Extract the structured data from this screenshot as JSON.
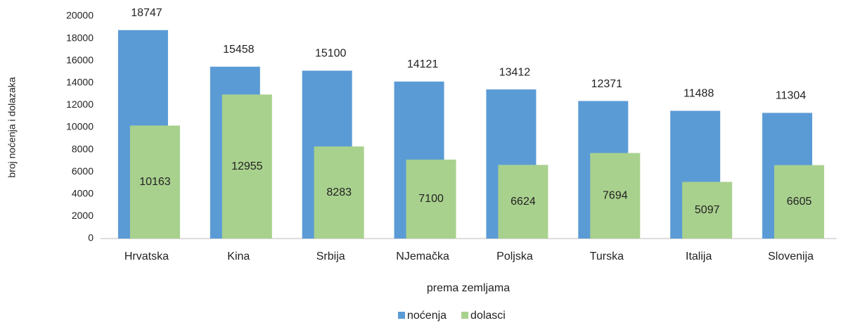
{
  "chart_data": {
    "type": "bar",
    "x_label": "prema zemljama",
    "y_label": "broj noćenja i dolazaka",
    "categories": [
      "Hrvatska",
      "Kina",
      "Srbija",
      "NJemačka",
      "Poljska",
      "Turska",
      "Italija",
      "Slovenija"
    ],
    "series": [
      {
        "name": "noćenja",
        "color": "#5b9bd5",
        "values": [
          18747,
          15458,
          15100,
          14121,
          13412,
          12371,
          11488,
          11304
        ]
      },
      {
        "name": "dolasci",
        "color": "#a9d18e",
        "values": [
          10163,
          12955,
          8283,
          7100,
          6624,
          7694,
          5097,
          6605
        ]
      }
    ],
    "ylim": [
      0,
      20000
    ],
    "yticks": [
      0,
      2000,
      4000,
      6000,
      8000,
      10000,
      12000,
      14000,
      16000,
      18000,
      20000
    ],
    "grid": false,
    "legend": "bottom"
  }
}
